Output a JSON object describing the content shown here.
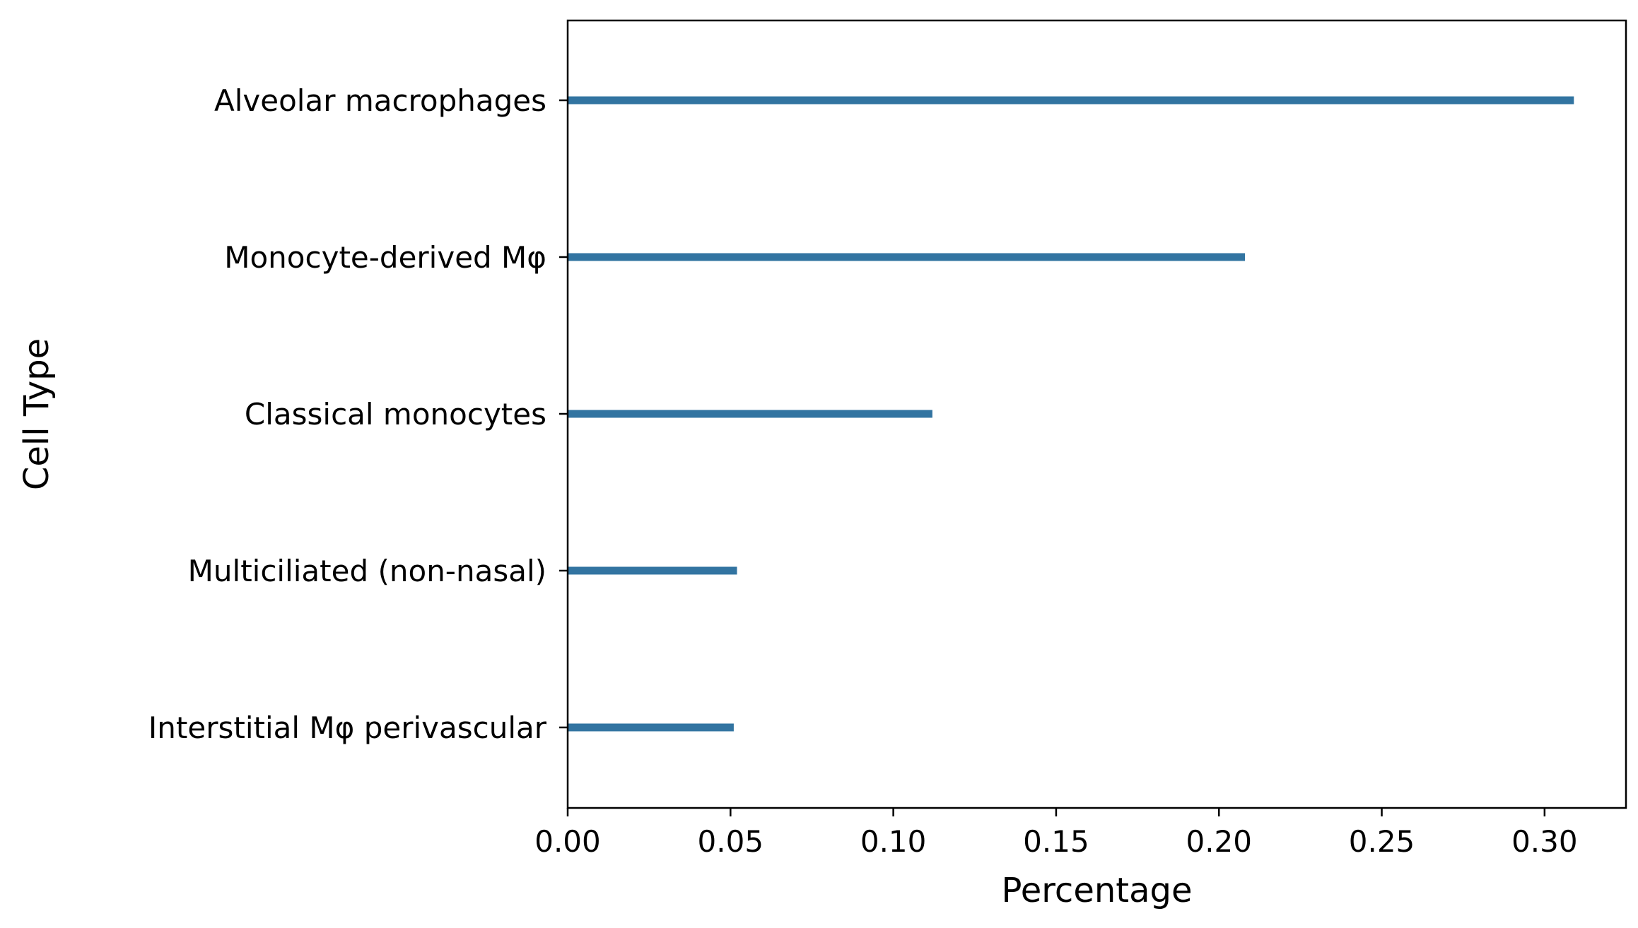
{
  "chart_data": {
    "type": "bar",
    "orientation": "horizontal",
    "categories": [
      "Alveolar macrophages",
      "Monocyte-derived Mφ",
      "Classical monocytes",
      "Multiciliated (non-nasal)",
      "Interstitial Mφ perivascular"
    ],
    "values": [
      0.309,
      0.208,
      0.112,
      0.052,
      0.051
    ],
    "xlabel": "Percentage",
    "ylabel": "Cell Type",
    "xlim": [
      0,
      0.325
    ],
    "xticks": [
      0.0,
      0.05,
      0.1,
      0.15,
      0.2,
      0.25,
      0.3
    ],
    "xtick_labels": [
      "0.00",
      "0.05",
      "0.10",
      "0.15",
      "0.20",
      "0.25",
      "0.30"
    ],
    "bar_color": "#3274a1",
    "grid": false,
    "legend": "none"
  }
}
